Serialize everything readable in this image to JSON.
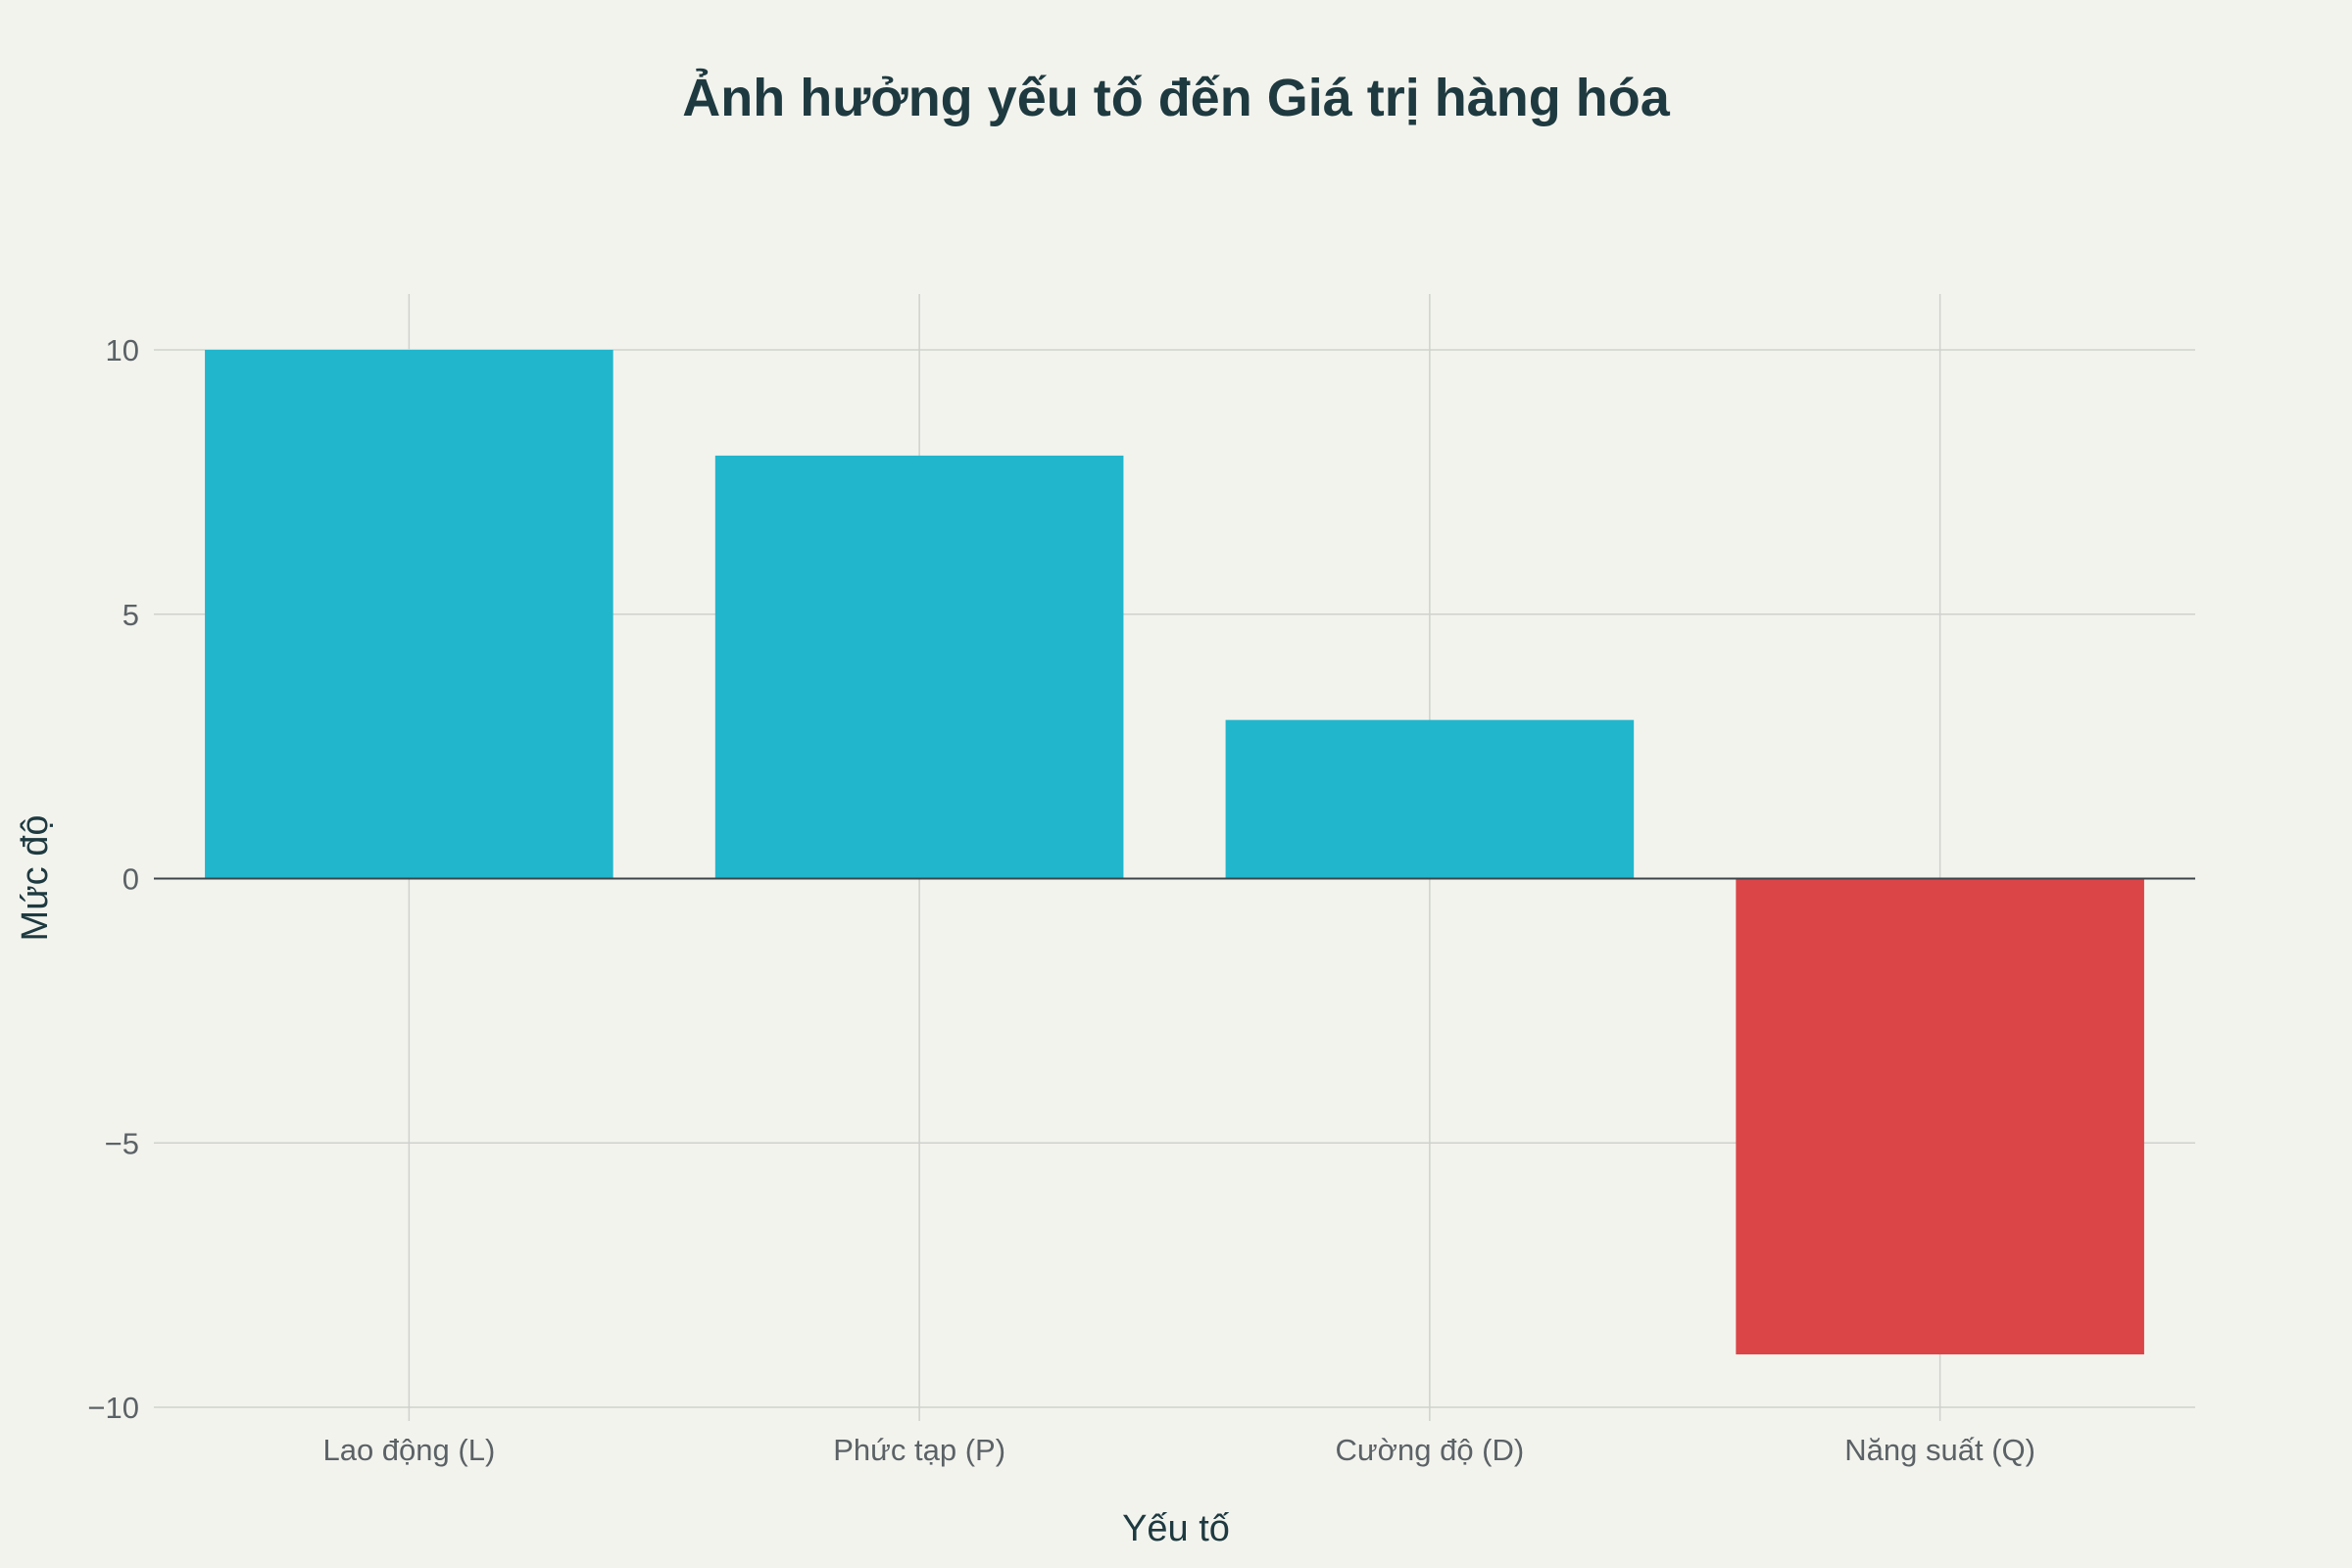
{
  "chart_data": {
    "type": "bar",
    "title": "Ảnh hưởng yếu tố đến Giá trị hàng hóa",
    "xlabel": "Yếu tố",
    "ylabel": "Mức độ",
    "categories": [
      "Lao động (L)",
      "Phức tạp (P)",
      "Cường độ (D)",
      "Năng suất (Q)"
    ],
    "values": [
      10,
      8,
      3,
      -9
    ],
    "bar_colors": [
      "#21b6cc",
      "#21b6cc",
      "#21b6cc",
      "#db4548"
    ],
    "ylim": [
      -10,
      10
    ],
    "yticks": [
      10,
      5,
      0,
      -5,
      -10
    ],
    "ytick_labels": [
      "10",
      "5",
      "0",
      "−5",
      "−10"
    ],
    "grid": true,
    "legend": "none"
  }
}
